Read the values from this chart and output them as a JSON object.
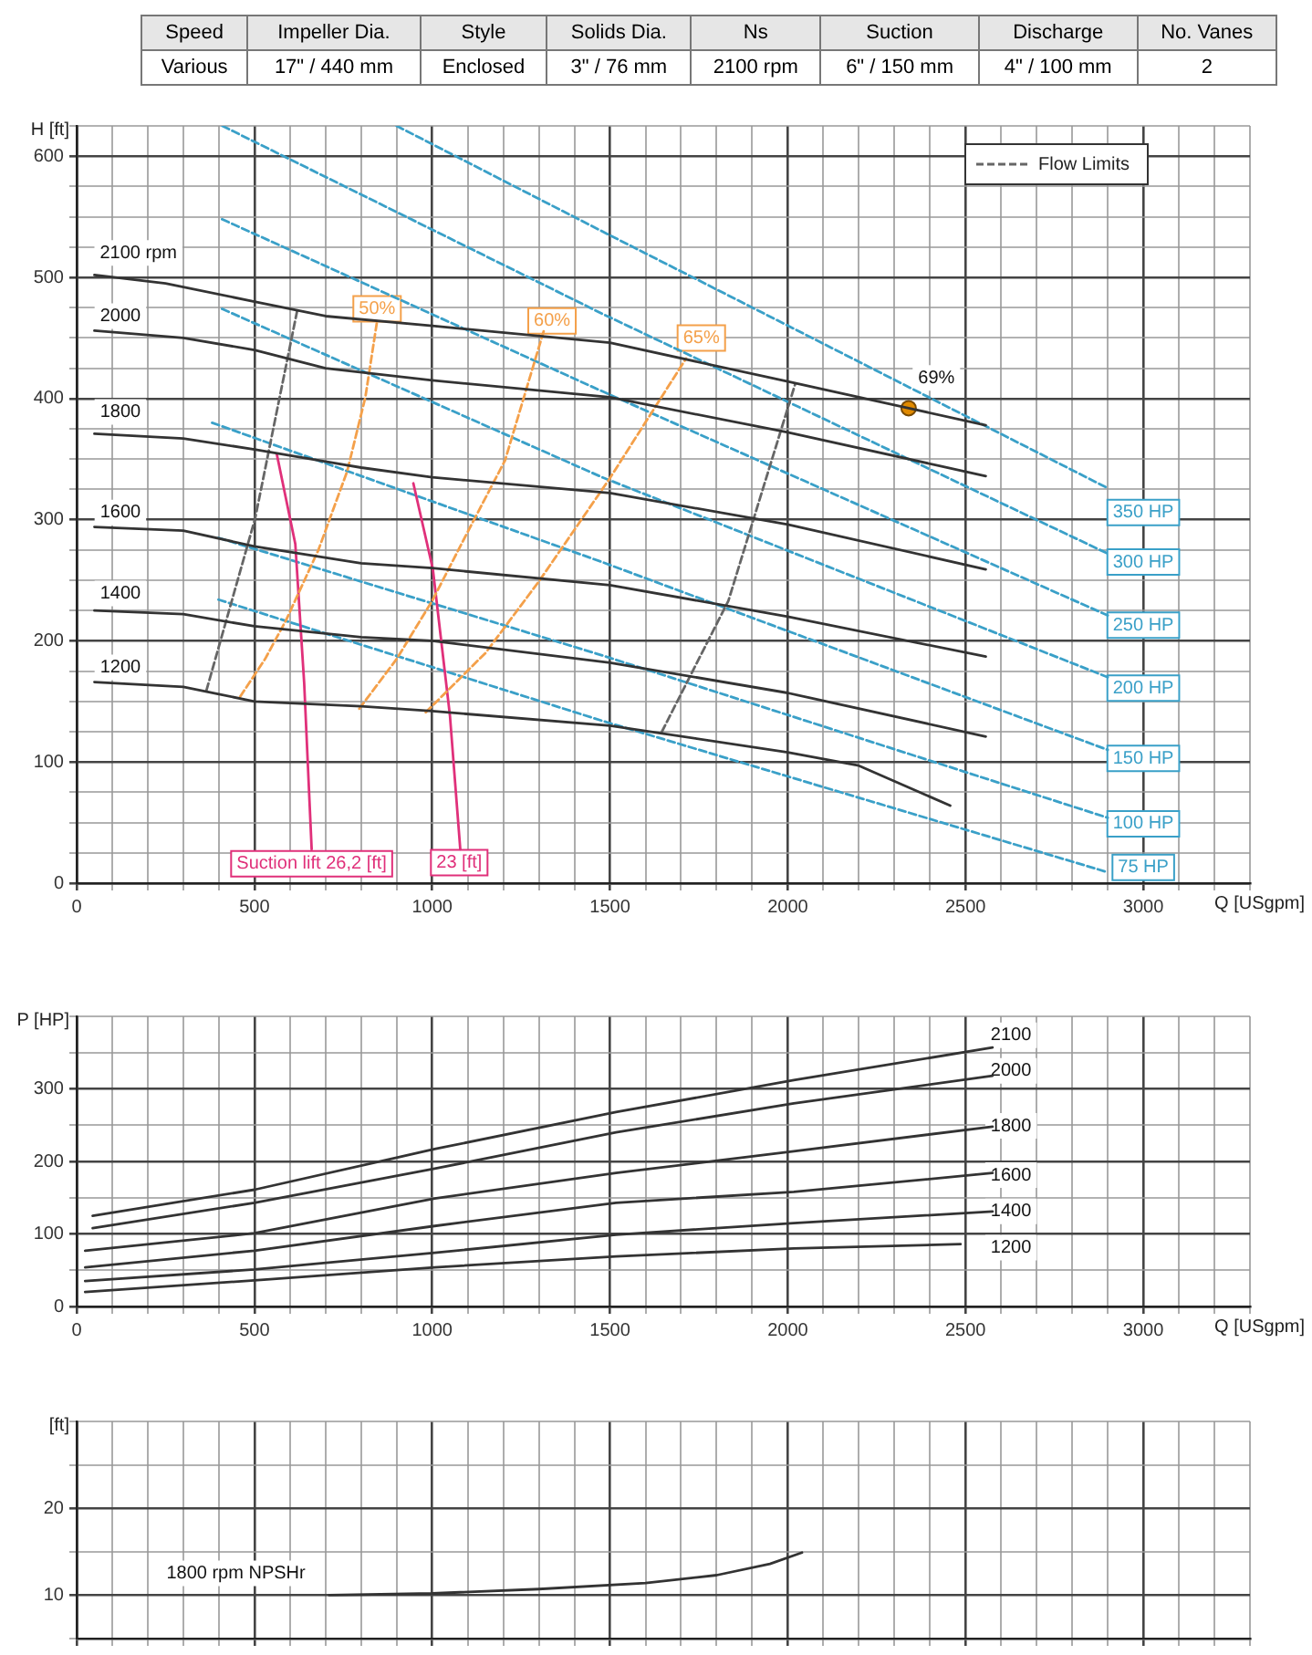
{
  "chart_data": [
    {
      "type": "other",
      "annotations": [
        "Speed",
        "Impeller Dia.",
        "Style",
        "Solids Dia.",
        "Ns",
        "Suction",
        "Discharge",
        "No. Vanes",
        "Various",
        "17\" / 440 mm",
        "Enclosed",
        "3\" / 76 mm",
        "2100 rpm",
        "6\" / 150 mm",
        "4\" / 100 mm",
        "2"
      ]
    },
    {
      "type": "line",
      "ylabel": "H [ft]",
      "xlabel": "Q [USgpm]",
      "xlim": [
        0,
        3300
      ],
      "ylim": [
        0,
        625
      ],
      "grid": true,
      "legend": "top right",
      "xticks": [
        0,
        {
          "value": 100,
          "label": null
        },
        {
          "value": 200,
          "label": null
        },
        {
          "value": 300,
          "label": null
        },
        {
          "value": 400,
          "label": null
        },
        500,
        {
          "value": 600,
          "label": null
        },
        {
          "value": 700,
          "label": null
        },
        {
          "value": 800,
          "label": null
        },
        {
          "value": 900,
          "label": null
        },
        1000,
        {
          "value": 1100,
          "label": null
        },
        {
          "value": 1200,
          "label": null
        },
        {
          "value": 1300,
          "label": null
        },
        {
          "value": 1400,
          "label": null
        },
        1500,
        {
          "value": 1600,
          "label": null
        },
        {
          "value": 1700,
          "label": null
        },
        {
          "value": 1800,
          "label": null
        },
        {
          "value": 1900,
          "label": null
        },
        2000,
        {
          "value": 2100,
          "label": null
        },
        {
          "value": 2200,
          "label": null
        },
        {
          "value": 2300,
          "label": null
        },
        {
          "value": 2400,
          "label": null
        },
        2500,
        {
          "value": 2600,
          "label": null
        },
        {
          "value": 2700,
          "label": null
        },
        {
          "value": 2800,
          "label": null
        },
        {
          "value": 2900,
          "label": null
        },
        3000,
        {
          "value": 3100,
          "label": null
        },
        {
          "value": 3200,
          "label": null
        },
        {
          "value": 3300,
          "label": null
        }
      ],
      "yticks": [
        0,
        {
          "value": 25,
          "label": null
        },
        {
          "value": 50,
          "label": null
        },
        {
          "value": 75,
          "label": null
        },
        100,
        {
          "value": 125,
          "label": null
        },
        {
          "value": 150,
          "label": null
        },
        {
          "value": 175,
          "label": null
        },
        200,
        {
          "value": 225,
          "label": null
        },
        {
          "value": 250,
          "label": null
        },
        {
          "value": 275,
          "label": null
        },
        300,
        {
          "value": 325,
          "label": null
        },
        {
          "value": 350,
          "label": null
        },
        {
          "value": 375,
          "label": null
        },
        400,
        {
          "value": 425,
          "label": null
        },
        {
          "value": 450,
          "label": null
        },
        {
          "value": 475,
          "label": null
        },
        500,
        {
          "value": 525,
          "label": null
        },
        {
          "value": 550,
          "label": null
        },
        {
          "value": 575,
          "label": null
        },
        600,
        {
          "value": 625,
          "label": null
        }
      ],
      "series": [
        {
          "color": "#333333",
          "x": [
            50,
            250,
            500,
            700,
            1000,
            1500,
            2000,
            2340,
            2557
          ],
          "values": [
            502,
            495,
            480,
            468,
            460,
            446,
            414,
            392,
            378
          ]
        },
        {
          "color": "#333333",
          "x": [
            50,
            300,
            500,
            700,
            1000,
            1500,
            2000,
            2557
          ],
          "values": [
            456,
            450,
            440,
            425,
            415,
            401,
            372,
            336
          ]
        },
        {
          "color": "#333333",
          "x": [
            50,
            300,
            500,
            800,
            1000,
            1500,
            2000,
            2557
          ],
          "values": [
            371,
            367,
            358,
            343,
            335,
            322,
            296,
            259
          ]
        },
        {
          "color": "#333333",
          "x": [
            50,
            300,
            500,
            800,
            1000,
            1500,
            2000,
            2557
          ],
          "values": [
            294,
            291,
            278,
            264,
            260,
            246,
            220,
            187
          ]
        },
        {
          "color": "#333333",
          "x": [
            50,
            300,
            500,
            800,
            1000,
            1500,
            2000,
            2557
          ],
          "values": [
            225,
            222,
            212,
            203,
            200,
            182,
            157,
            121
          ]
        },
        {
          "color": "#333333",
          "x": [
            50,
            300,
            500,
            800,
            1000,
            1500,
            2000,
            2200,
            2457
          ],
          "values": [
            166,
            162,
            150,
            146,
            142,
            130,
            108,
            97,
            64
          ]
        },
        {
          "color": "#f4a04a",
          "line_style": "dashed",
          "x": [
            460,
            530,
            589,
            680,
            761,
            812,
            844
          ],
          "values": [
            154,
            185,
            217,
            275,
            340,
            401,
            462
          ]
        },
        {
          "color": "#f4a04a",
          "line_style": "dashed",
          "x": [
            795,
            900,
            1000,
            1100,
            1205,
            1315
          ],
          "values": [
            144,
            185,
            233,
            290,
            349,
            457
          ]
        },
        {
          "color": "#f4a04a",
          "line_style": "dashed",
          "x": [
            982,
            1150,
            1300,
            1497,
            1714
          ],
          "values": [
            141,
            190,
            249,
            333,
            433
          ]
        },
        {
          "type": "scatter",
          "color": "#e08a00",
          "marker": "circle",
          "x": [
            2340
          ],
          "values": [
            392
          ]
        },
        {
          "name": "Flow Limits",
          "color": "#666666",
          "line_style": "dashed",
          "x": [
            365,
            502,
            622,
            1200,
            1646,
            1833,
            2021
          ],
          "values": [
            159,
            301,
            475,
            null,
            125,
            233,
            412
          ]
        },
        {
          "color": "#e0307a",
          "x": [
            563,
            615,
            640,
            661
          ],
          "values": [
            354,
            280,
            165,
            28
          ]
        },
        {
          "color": "#e0307a",
          "x": [
            947,
            1002,
            1050,
            1079
          ],
          "values": [
            330,
            259,
            138,
            28
          ]
        },
        {
          "color": "#3aa0c8",
          "line_style": "dashed",
          "x": [
            900,
            1478,
            2900
          ],
          "values": [
            625,
            538,
            326
          ]
        },
        {
          "color": "#3aa0c8",
          "line_style": "dashed",
          "x": [
            410,
            1478,
            2900
          ],
          "values": [
            625,
            470,
            272
          ]
        },
        {
          "color": "#3aa0c8",
          "line_style": "dashed",
          "x": [
            409,
            1478,
            2900
          ],
          "values": [
            548,
            406,
            221
          ]
        },
        {
          "color": "#3aa0c8",
          "line_style": "dashed",
          "x": [
            409,
            1478,
            2900
          ],
          "values": [
            474,
            335,
            170
          ]
        },
        {
          "color": "#3aa0c8",
          "line_style": "dashed",
          "x": [
            381,
            1478,
            2900
          ],
          "values": [
            380,
            265,
            110
          ]
        },
        {
          "color": "#3aa0c8",
          "line_style": "dashed",
          "x": [
            399,
            1478,
            2900
          ],
          "values": [
            285,
            188,
            54
          ]
        },
        {
          "color": "#3aa0c8",
          "line_style": "dashed",
          "x": [
            399,
            1478,
            2900
          ],
          "values": [
            234,
            134,
            9
          ]
        }
      ],
      "annotations": [
        {
          "text": "2100 rpm",
          "x": 50,
          "y": 502
        },
        {
          "text": "2000",
          "x": 123,
          "y": 468
        },
        {
          "text": "1800",
          "x": 123,
          "y": 389
        },
        {
          "text": "1600",
          "x": 123,
          "y": 306
        },
        {
          "text": "1400",
          "x": 123,
          "y": 239
        },
        {
          "text": "1200",
          "x": 123,
          "y": 178
        },
        {
          "text": "50%",
          "x": 845,
          "y": 474
        },
        {
          "text": "60%",
          "x": 1337,
          "y": 464
        },
        {
          "text": "65%",
          "x": 1757,
          "y": 450
        },
        {
          "text": "69%",
          "x": 2418,
          "y": 417
        },
        {
          "text": "Suction lift 26,2 [ft]",
          "x": 661,
          "y": 28
        },
        {
          "text": "23 [ft]",
          "x": 1076,
          "y": 17
        },
        {
          "text": "350 HP",
          "x": 3000,
          "y": 306
        },
        {
          "text": "300 HP",
          "x": 3000,
          "y": 265
        },
        {
          "text": "250 HP",
          "x": 3000,
          "y": 213
        },
        {
          "text": "200 HP",
          "x": 3000,
          "y": 161
        },
        {
          "text": "150 HP",
          "x": 3000,
          "y": 103
        },
        {
          "text": "100 HP",
          "x": 3000,
          "y": 49
        },
        {
          "text": "75 HP",
          "x": 3000,
          "y": 13
        }
      ]
    },
    {
      "type": "line",
      "ylabel": "P [HP]",
      "xlabel": "Q [USgpm]",
      "xlim": [
        0,
        3300
      ],
      "ylim": [
        0,
        400
      ],
      "grid": true,
      "xticks": [
        0,
        {
          "value": 100,
          "label": null
        },
        {
          "value": 200,
          "label": null
        },
        {
          "value": 300,
          "label": null
        },
        {
          "value": 400,
          "label": null
        },
        500,
        {
          "value": 600,
          "label": null
        },
        {
          "value": 700,
          "label": null
        },
        {
          "value": 800,
          "label": null
        },
        {
          "value": 900,
          "label": null
        },
        1000,
        {
          "value": 1100,
          "label": null
        },
        {
          "value": 1200,
          "label": null
        },
        {
          "value": 1300,
          "label": null
        },
        {
          "value": 1400,
          "label": null
        },
        1500,
        {
          "value": 1600,
          "label": null
        },
        {
          "value": 1700,
          "label": null
        },
        {
          "value": 1800,
          "label": null
        },
        {
          "value": 1900,
          "label": null
        },
        2000,
        {
          "value": 2100,
          "label": null
        },
        {
          "value": 2200,
          "label": null
        },
        {
          "value": 2300,
          "label": null
        },
        {
          "value": 2400,
          "label": null
        },
        2500,
        {
          "value": 2600,
          "label": null
        },
        {
          "value": 2700,
          "label": null
        },
        {
          "value": 2800,
          "label": null
        },
        {
          "value": 2900,
          "label": null
        },
        3000,
        {
          "value": 3100,
          "label": null
        },
        {
          "value": 3200,
          "label": null
        },
        {
          "value": 3300,
          "label": null
        }
      ],
      "yticks": [
        0,
        {
          "value": 50,
          "label": null
        },
        100,
        {
          "value": 150,
          "label": null
        },
        200,
        {
          "value": 250,
          "label": null
        },
        300,
        {
          "value": 350,
          "label": null
        },
        {
          "value": 400,
          "label": null
        }
      ],
      "series": [
        {
          "color": "#333333",
          "x": [
            45,
            500,
            1007,
            1517,
            2017,
            2576
          ],
          "values": [
            125,
            161,
            217,
            268,
            312,
            357
          ]
        },
        {
          "color": "#333333",
          "x": [
            45,
            500,
            1007,
            1517,
            2017,
            2576
          ],
          "values": [
            108,
            143,
            190,
            240,
            280,
            318
          ]
        },
        {
          "color": "#333333",
          "x": [
            24,
            500,
            1007,
            1517,
            2017,
            2576
          ],
          "values": [
            77,
            101,
            149,
            184,
            214,
            248
          ]
        },
        {
          "color": "#333333",
          "x": [
            24,
            500,
            1007,
            1517,
            2017,
            2576
          ],
          "values": [
            54,
            77,
            111,
            143,
            158,
            184
          ]
        },
        {
          "color": "#333333",
          "x": [
            24,
            500,
            1007,
            1517,
            2017,
            2576
          ],
          "values": [
            35,
            51,
            74,
            99,
            115,
            131
          ]
        },
        {
          "color": "#333333",
          "x": [
            24,
            500,
            1007,
            1517,
            2017,
            2486
          ],
          "values": [
            20,
            36,
            54,
            69,
            80,
            86
          ]
        }
      ],
      "annotations": [
        {
          "text": "2100",
          "x": 2628,
          "y": 374
        },
        {
          "text": "2000",
          "x": 2628,
          "y": 325
        },
        {
          "text": "1800",
          "x": 2628,
          "y": 249
        },
        {
          "text": "1600",
          "x": 2628,
          "y": 181
        },
        {
          "text": "1400",
          "x": 2628,
          "y": 131
        },
        {
          "text": "1200",
          "x": 2628,
          "y": 81
        }
      ]
    },
    {
      "type": "line",
      "ylabel": "[ft]",
      "xlim": [
        0,
        3300
      ],
      "ylim": [
        5,
        30
      ],
      "grid": true,
      "tick_labels": "y",
      "xticks": [
        0,
        {
          "value": 100,
          "label": null
        },
        {
          "value": 200,
          "label": null
        },
        {
          "value": 300,
          "label": null
        },
        {
          "value": 400,
          "label": null
        },
        500,
        {
          "value": 600,
          "label": null
        },
        {
          "value": 700,
          "label": null
        },
        {
          "value": 800,
          "label": null
        },
        {
          "value": 900,
          "label": null
        },
        1000,
        {
          "value": 1100,
          "label": null
        },
        {
          "value": 1200,
          "label": null
        },
        {
          "value": 1300,
          "label": null
        },
        {
          "value": 1400,
          "label": null
        },
        1500,
        {
          "value": 1600,
          "label": null
        },
        {
          "value": 1700,
          "label": null
        },
        {
          "value": 1800,
          "label": null
        },
        {
          "value": 1900,
          "label": null
        },
        2000,
        {
          "value": 2100,
          "label": null
        },
        {
          "value": 2200,
          "label": null
        },
        {
          "value": 2300,
          "label": null
        },
        {
          "value": 2400,
          "label": null
        },
        2500,
        {
          "value": 2600,
          "label": null
        },
        {
          "value": 2700,
          "label": null
        },
        {
          "value": 2800,
          "label": null
        },
        {
          "value": 2900,
          "label": null
        },
        3000,
        {
          "value": 3100,
          "label": null
        },
        {
          "value": 3200,
          "label": null
        },
        {
          "value": 3300,
          "label": null
        }
      ],
      "yticks": [
        {
          "value": 5,
          "label": null
        },
        10,
        {
          "value": 15,
          "label": null
        },
        20,
        {
          "value": 25,
          "label": null
        },
        {
          "value": 30,
          "label": null
        }
      ],
      "series": [
        {
          "color": "#333333",
          "x": [
            710,
            1000,
            1300,
            1600,
            1800,
            1950,
            2040
          ],
          "values": [
            10.0,
            10.2,
            10.7,
            11.4,
            12.3,
            13.6,
            14.9
          ]
        }
      ],
      "annotations": [
        "1800 rpm NPSHr"
      ]
    }
  ]
}
